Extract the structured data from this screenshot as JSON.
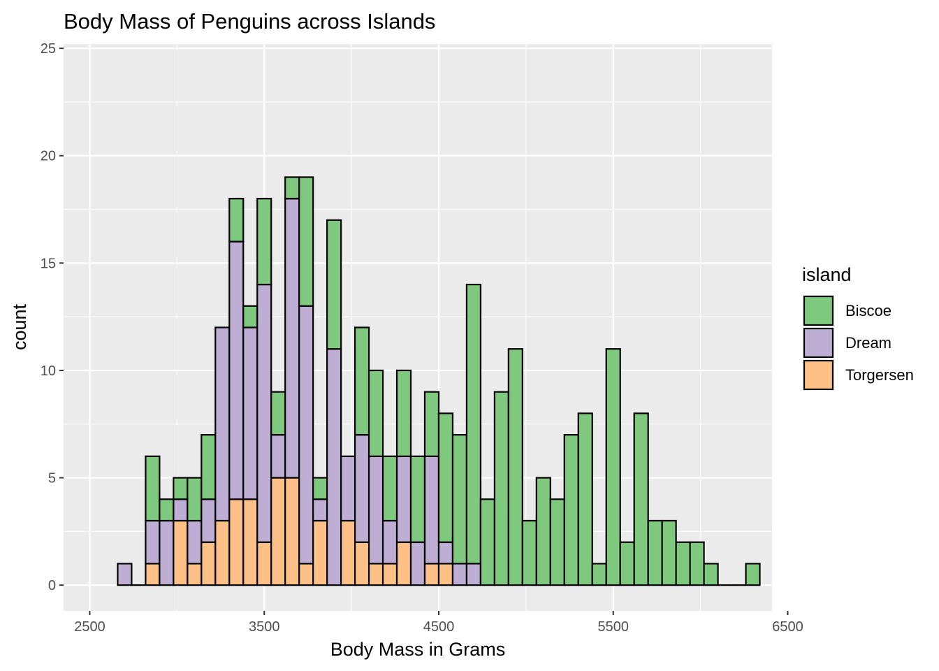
{
  "chart_data": {
    "type": "bar",
    "stacked": true,
    "title": "Body Mass of Penguins across Islands",
    "xlabel": "Body Mass in Grams",
    "ylabel": "count",
    "xlim": [
      2500,
      6500
    ],
    "ylim": [
      0,
      25
    ],
    "x_ticks": [
      "2500",
      "3500",
      "4500",
      "5500",
      "6500"
    ],
    "y_ticks": [
      "0",
      "5",
      "10",
      "15",
      "20",
      "25"
    ],
    "grid": true,
    "legend_title": "island",
    "legend_position": "right",
    "bin_width": 80,
    "bin_starts": [
      2660,
      2740,
      2820,
      2900,
      2980,
      3060,
      3140,
      3220,
      3300,
      3380,
      3460,
      3540,
      3620,
      3700,
      3780,
      3860,
      3940,
      4020,
      4100,
      4180,
      4260,
      4340,
      4420,
      4500,
      4580,
      4660,
      4740,
      4820,
      4900,
      4980,
      5060,
      5140,
      5220,
      5300,
      5380,
      5460,
      5540,
      5620,
      5700,
      5780,
      5860,
      5940,
      6020,
      6100,
      6180,
      6260
    ],
    "series": [
      {
        "name": "Torgersen",
        "color": "#FDC086",
        "values": [
          0,
          0,
          1,
          0,
          3,
          1,
          2,
          3,
          4,
          4,
          2,
          5,
          5,
          1,
          3,
          0,
          3,
          2,
          1,
          1,
          2,
          0,
          1,
          1,
          0,
          0,
          0,
          0,
          0,
          0,
          0,
          0,
          0,
          0,
          0,
          0,
          0,
          0,
          0,
          0,
          0,
          0,
          0,
          0,
          0,
          0
        ]
      },
      {
        "name": "Dream",
        "color": "#BEAED4",
        "values": [
          1,
          0,
          2,
          3,
          1,
          2,
          2,
          9,
          12,
          8,
          12,
          2,
          13,
          12,
          1,
          11,
          3,
          5,
          5,
          2,
          4,
          2,
          5,
          1,
          1,
          1,
          0,
          0,
          0,
          0,
          0,
          0,
          0,
          0,
          0,
          0,
          0,
          0,
          0,
          0,
          0,
          0,
          0,
          0,
          0,
          0
        ]
      },
      {
        "name": "Biscoe",
        "color": "#7FC97F",
        "values": [
          0,
          0,
          3,
          1,
          1,
          2,
          3,
          0,
          2,
          1,
          4,
          2,
          1,
          6,
          1,
          6,
          0,
          5,
          4,
          3,
          4,
          4,
          3,
          6,
          6,
          13,
          4,
          9,
          11,
          3,
          5,
          4,
          7,
          8,
          1,
          11,
          2,
          8,
          3,
          3,
          2,
          2,
          1,
          0,
          0,
          1
        ]
      }
    ]
  }
}
